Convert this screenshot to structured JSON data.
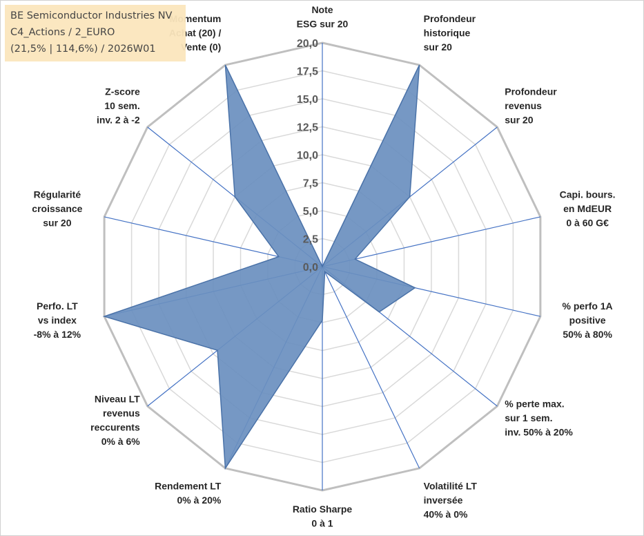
{
  "info": {
    "line1": "BE Semiconductor Industries NV",
    "line2": "C4_Actions / 2_EURO",
    "line3": "(21,5% | 114,6%) / 2026W01"
  },
  "colors": {
    "fill": "#6a8fbf",
    "stroke": "#4a72a8",
    "grid": "#d9d9d9",
    "outer": "#bfbfbf",
    "spoke": "#4472c4"
  },
  "chart_data": {
    "type": "radar",
    "rmax": 20,
    "ticks": [
      "0,0",
      "2,5",
      "5,0",
      "7,5",
      "10,0",
      "12,5",
      "15,0",
      "17,5",
      "20,0"
    ],
    "axes": [
      {
        "lines": [
          "Note",
          "ESG sur 20"
        ],
        "value": 0
      },
      {
        "lines": [
          "Profondeur",
          "historique",
          "sur 20"
        ],
        "value": 20
      },
      {
        "lines": [
          "Profondeur",
          "revenus",
          "sur 20"
        ],
        "value": 10
      },
      {
        "lines": [
          "Capi. bours.",
          "en MdEUR",
          "0 à 60 G€"
        ],
        "value": 3
      },
      {
        "lines": [
          "% perfo 1A",
          "positive",
          "50% à 80%"
        ],
        "value": 8.5
      },
      {
        "lines": [
          "% perte max.",
          "sur 1 sem.",
          "inv. 50% à 20%"
        ],
        "value": 6.5
      },
      {
        "lines": [
          "Volatilité LT",
          "inversée",
          "40% à 0%"
        ],
        "value": 0.5
      },
      {
        "lines": [
          "Ratio Sharpe",
          "0 à 1"
        ],
        "value": 4.8
      },
      {
        "lines": [
          "Rendement LT",
          "0% à 20%"
        ],
        "value": 20
      },
      {
        "lines": [
          "Niveau LT",
          "revenus",
          "reccurents",
          "0% à 6%"
        ],
        "value": 12
      },
      {
        "lines": [
          "Perfo. LT",
          "vs index",
          "-8% à 12%"
        ],
        "value": 20
      },
      {
        "lines": [
          "Régularité",
          "croissance",
          "sur 20"
        ],
        "value": 4
      },
      {
        "lines": [
          "Z-score",
          "10 sem.",
          "inv. 2 à -2"
        ],
        "value": 10
      },
      {
        "lines": [
          "Momentum",
          "Achat (20) /",
          "Vente (0)"
        ],
        "value": 20
      }
    ]
  }
}
